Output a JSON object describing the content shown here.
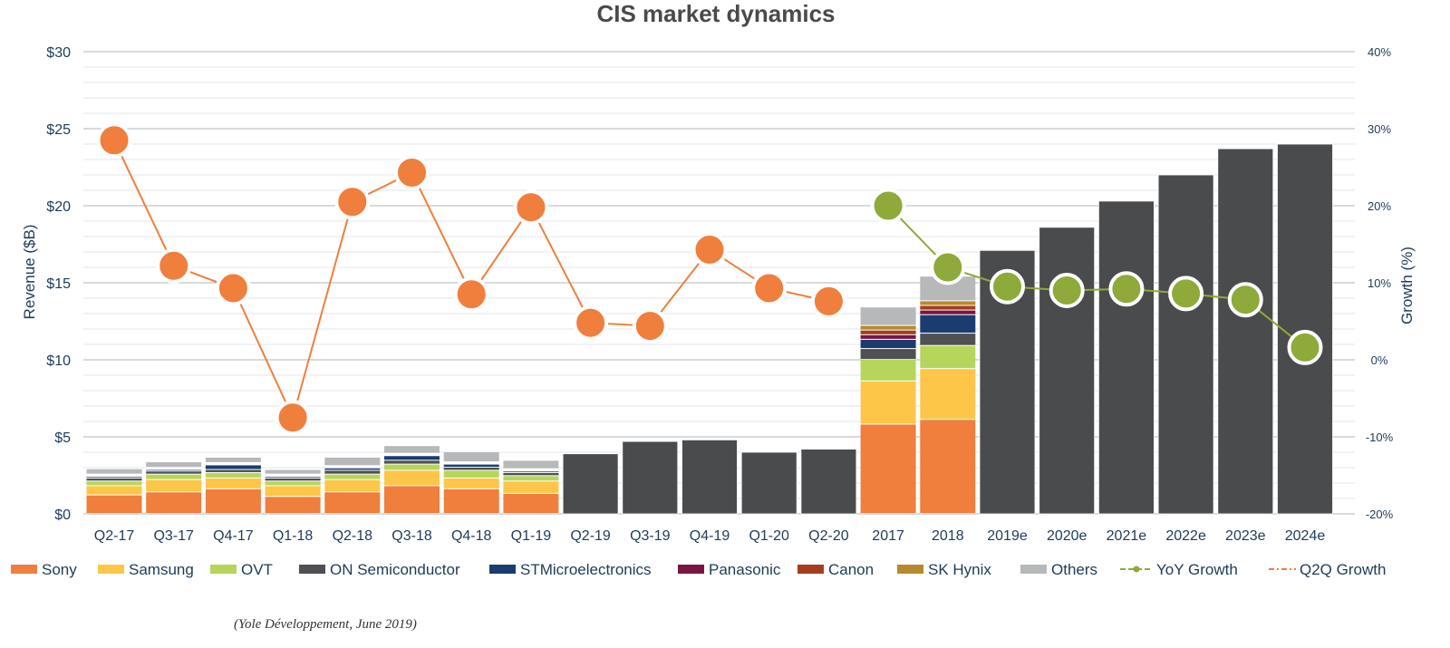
{
  "chart_data": {
    "type": "bar",
    "title": "CIS market dynamics",
    "ylabel": "Revenue ($B)",
    "y2label": "Growth (%)",
    "ylim": [
      0,
      30
    ],
    "y2lim": [
      -20,
      40
    ],
    "yticks": [
      "$0",
      "$5",
      "$10",
      "$15",
      "$20",
      "$25",
      "$30"
    ],
    "y2ticks": [
      "-20%",
      "-10%",
      "0%",
      "10%",
      "20%",
      "30%",
      "40%"
    ],
    "grid": true,
    "legend_position": "bottom",
    "source": "(Yole Développement, June 2019)",
    "categories": [
      "Q2-17",
      "Q3-17",
      "Q4-17",
      "Q1-18",
      "Q2-18",
      "Q3-18",
      "Q4-18",
      "Q1-19",
      "Q2-19",
      "Q3-19",
      "Q4-19",
      "Q1-20",
      "Q2-20",
      "2017",
      "2018",
      "2019e",
      "2020e",
      "2021e",
      "2022e",
      "2023e",
      "2024e"
    ],
    "stack_order": [
      "Sony",
      "Samsung",
      "OVT",
      "ON Semiconductor",
      "STMicroelectronics",
      "Panasonic",
      "Canon",
      "SK Hynix",
      "Others"
    ],
    "stacked": [
      {
        "category": "Q2-17",
        "values": {
          "Sony": 1.2,
          "Samsung": 0.6,
          "OVT": 0.3,
          "ON Semiconductor": 0.2,
          "STMicroelectronics": 0.1,
          "Panasonic": 0.05,
          "Canon": 0.05,
          "SK Hynix": 0.05,
          "Others": 0.35
        }
      },
      {
        "category": "Q3-17",
        "values": {
          "Sony": 1.4,
          "Samsung": 0.8,
          "OVT": 0.35,
          "ON Semiconductor": 0.2,
          "STMicroelectronics": 0.1,
          "Panasonic": 0.05,
          "Canon": 0.05,
          "SK Hynix": 0.05,
          "Others": 0.35
        }
      },
      {
        "category": "Q4-17",
        "values": {
          "Sony": 1.6,
          "Samsung": 0.7,
          "OVT": 0.35,
          "ON Semiconductor": 0.2,
          "STMicroelectronics": 0.3,
          "Panasonic": 0.05,
          "Canon": 0.05,
          "SK Hynix": 0.05,
          "Others": 0.35
        }
      },
      {
        "category": "Q1-18",
        "values": {
          "Sony": 1.1,
          "Samsung": 0.7,
          "OVT": 0.3,
          "ON Semiconductor": 0.2,
          "STMicroelectronics": 0.1,
          "Panasonic": 0.05,
          "Canon": 0.05,
          "SK Hynix": 0.05,
          "Others": 0.3
        }
      },
      {
        "category": "Q2-18",
        "values": {
          "Sony": 1.4,
          "Samsung": 0.8,
          "OVT": 0.35,
          "ON Semiconductor": 0.25,
          "STMicroelectronics": 0.15,
          "Panasonic": 0.05,
          "Canon": 0.05,
          "SK Hynix": 0.05,
          "Others": 0.55
        }
      },
      {
        "category": "Q3-18",
        "values": {
          "Sony": 1.8,
          "Samsung": 1.0,
          "OVT": 0.4,
          "ON Semiconductor": 0.25,
          "STMicroelectronics": 0.3,
          "Panasonic": 0.05,
          "Canon": 0.05,
          "SK Hynix": 0.05,
          "Others": 0.5
        }
      },
      {
        "category": "Q4-18",
        "values": {
          "Sony": 1.6,
          "Samsung": 0.7,
          "OVT": 0.5,
          "ON Semiconductor": 0.2,
          "STMicroelectronics": 0.2,
          "Panasonic": 0.05,
          "Canon": 0.05,
          "SK Hynix": 0.05,
          "Others": 0.65
        }
      },
      {
        "category": "Q1-19",
        "values": {
          "Sony": 1.3,
          "Samsung": 0.8,
          "OVT": 0.35,
          "ON Semiconductor": 0.2,
          "STMicroelectronics": 0.1,
          "Panasonic": 0.05,
          "Canon": 0.05,
          "SK Hynix": 0.05,
          "Others": 0.55
        }
      },
      {
        "category": "2017",
        "values": {
          "Sony": 5.8,
          "Samsung": 2.8,
          "OVT": 1.4,
          "ON Semiconductor": 0.7,
          "STMicroelectronics": 0.6,
          "Panasonic": 0.3,
          "Canon": 0.3,
          "SK Hynix": 0.3,
          "Others": 1.2
        }
      },
      {
        "category": "2018",
        "values": {
          "Sony": 6.1,
          "Samsung": 3.3,
          "OVT": 1.5,
          "ON Semiconductor": 0.8,
          "STMicroelectronics": 1.2,
          "Panasonic": 0.3,
          "Canon": 0.3,
          "SK Hynix": 0.3,
          "Others": 1.6
        }
      }
    ],
    "totals": [
      {
        "category": "Q2-19",
        "value": 3.9
      },
      {
        "category": "Q3-19",
        "value": 4.7
      },
      {
        "category": "Q4-19",
        "value": 4.8
      },
      {
        "category": "Q1-20",
        "value": 4.0
      },
      {
        "category": "Q2-20",
        "value": 4.2
      },
      {
        "category": "2019e",
        "value": 17.1
      },
      {
        "category": "2020e",
        "value": 18.6
      },
      {
        "category": "2021e",
        "value": 20.3
      },
      {
        "category": "2022e",
        "value": 22.0
      },
      {
        "category": "2023e",
        "value": 23.7
      },
      {
        "category": "2024e",
        "value": 24.0
      }
    ],
    "lines": [
      {
        "name": "Q2Q Growth",
        "axis": "secondary",
        "points": [
          {
            "category": "Q2-17",
            "value": 28.5
          },
          {
            "category": "Q3-17",
            "value": 12.2
          },
          {
            "category": "Q4-17",
            "value": 9.3
          },
          {
            "category": "Q1-18",
            "value": -7.5
          },
          {
            "category": "Q2-18",
            "value": 20.5
          },
          {
            "category": "Q3-18",
            "value": 24.3
          },
          {
            "category": "Q4-18",
            "value": 8.5
          },
          {
            "category": "Q1-19",
            "value": 19.8
          },
          {
            "category": "Q2-19",
            "value": 4.8
          },
          {
            "category": "Q3-19",
            "value": 4.4
          },
          {
            "category": "Q4-19",
            "value": 14.3
          },
          {
            "category": "Q1-20",
            "value": 9.3
          },
          {
            "category": "Q2-20",
            "value": 7.6
          }
        ]
      },
      {
        "name": "YoY Growth",
        "axis": "secondary",
        "points": [
          {
            "category": "2017",
            "value": 20.0
          },
          {
            "category": "2018",
            "value": 12.0
          },
          {
            "category": "2019e",
            "value": 9.5
          },
          {
            "category": "2020e",
            "value": 9.0
          },
          {
            "category": "2021e",
            "value": 9.2
          },
          {
            "category": "2022e",
            "value": 8.6
          },
          {
            "category": "2023e",
            "value": 7.8
          },
          {
            "category": "2024e",
            "value": 1.6
          }
        ]
      }
    ],
    "legend": [
      {
        "name": "Sony",
        "kind": "box",
        "color": "#F07E3D"
      },
      {
        "name": "Samsung",
        "kind": "box",
        "color": "#FDC648"
      },
      {
        "name": "OVT",
        "kind": "box",
        "color": "#B5D65B"
      },
      {
        "name": "ON Semiconductor",
        "kind": "box",
        "color": "#4F5054"
      },
      {
        "name": "STMicroelectronics",
        "kind": "box",
        "color": "#1B3C6E"
      },
      {
        "name": "Panasonic",
        "kind": "box",
        "color": "#7A1542"
      },
      {
        "name": "Canon",
        "kind": "box",
        "color": "#A43E1E"
      },
      {
        "name": "SK Hynix",
        "kind": "box",
        "color": "#B68A2C"
      },
      {
        "name": "Others",
        "kind": "box",
        "color": "#B7B8BA"
      },
      {
        "name": "YoY Growth",
        "kind": "line",
        "color": "#8DAA3A"
      },
      {
        "name": "Q2Q Growth",
        "kind": "line",
        "color": "#F07E3D"
      }
    ],
    "colors": {
      "total_bar": "#4A4B4D",
      "yoy_line": "#8DAA3A",
      "q2q_line": "#F07E3D"
    }
  }
}
